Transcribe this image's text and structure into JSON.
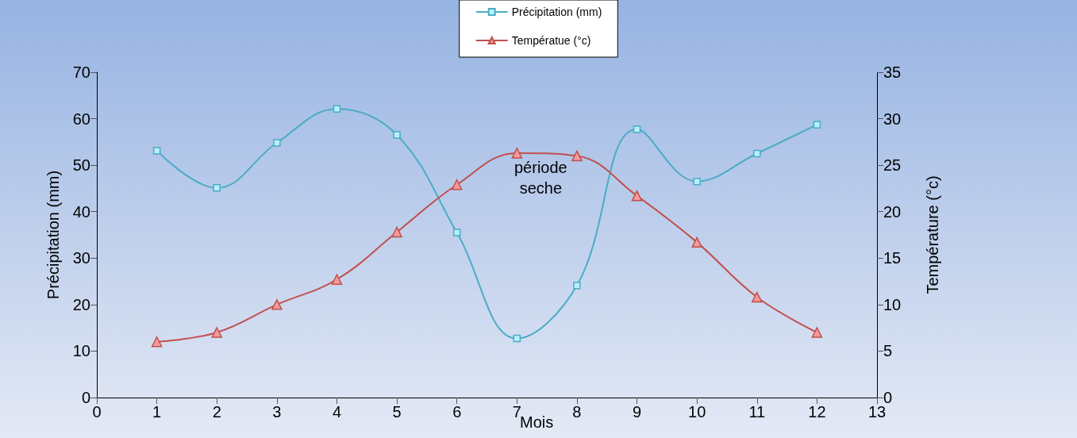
{
  "chart_data": {
    "type": "line",
    "xlabel": "Mois",
    "ylabel": "Précipitation (mm)",
    "y2label": "Température (°c)",
    "annotations": [
      "période\nseche"
    ],
    "x": [
      1,
      2,
      3,
      4,
      5,
      6,
      7,
      8,
      9,
      10,
      11,
      12
    ],
    "series": [
      {
        "name": "Précipitation (mm)",
        "color": "#4bacc6",
        "marker": "square",
        "values": [
          53.1,
          45.1,
          54.8,
          62.1,
          56.5,
          35.5,
          12.7,
          24.1,
          57.7,
          46.5,
          52.5,
          58.7
        ]
      },
      {
        "name": "Températue (°c)",
        "color": "#c0504d",
        "marker": "triangle",
        "axis": "y2",
        "values": [
          6,
          7,
          10,
          12.7,
          17.8,
          22.9,
          26.3,
          26,
          21.7,
          16.7,
          10.8,
          7
        ]
      }
    ],
    "xlim": [
      0,
      13
    ],
    "xticks": [
      0,
      1,
      2,
      3,
      4,
      5,
      6,
      7,
      8,
      9,
      10,
      11,
      12,
      13
    ],
    "ylim": [
      0,
      70
    ],
    "yticks": [
      0,
      10,
      20,
      30,
      40,
      50,
      60,
      70
    ],
    "y2lim": [
      0,
      35
    ],
    "y2ticks": [
      0,
      5,
      10,
      15,
      20,
      25,
      30,
      35
    ],
    "grid": false,
    "legend": "top",
    "line_style": "solid"
  }
}
